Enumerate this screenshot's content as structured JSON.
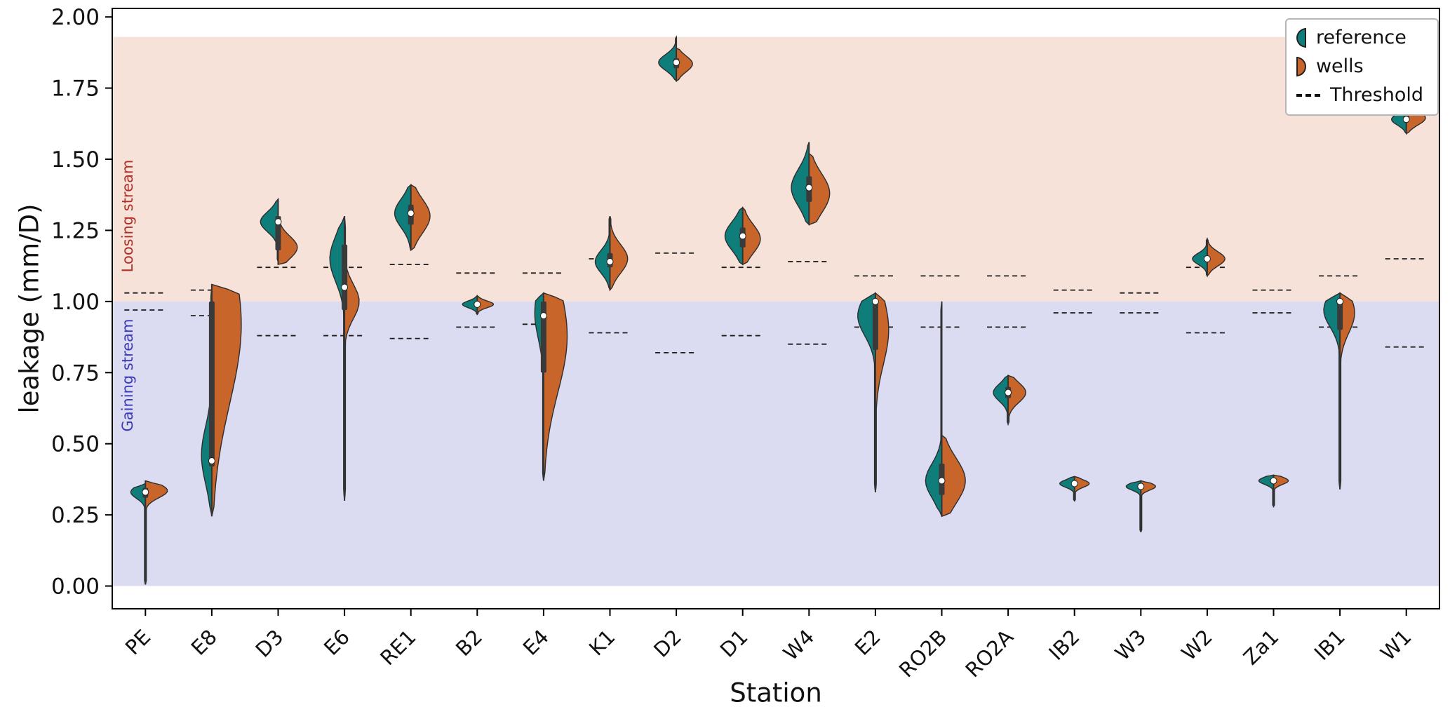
{
  "axes": {
    "ylabel": "leakage (mm/D)",
    "xlabel": "Station",
    "y_ticks": [
      "0.00",
      "0.25",
      "0.50",
      "0.75",
      "1.00",
      "1.25",
      "1.50",
      "1.75",
      "2.00"
    ],
    "y_tick_values": [
      0,
      0.25,
      0.5,
      0.75,
      1.0,
      1.25,
      1.5,
      1.75,
      2.0
    ],
    "ylim_drawn": [
      -0.08,
      2.03
    ]
  },
  "regions": [
    {
      "label": "Loosing stream",
      "text_color": "#b03028",
      "band_color": "#f7e2da",
      "from": 1.0,
      "to": 1.93
    },
    {
      "label": "Gaining stream",
      "text_color": "#3a3ab8",
      "band_color": "#dbdbf1",
      "from": 0.0,
      "to": 1.0
    }
  ],
  "legend": {
    "items": [
      {
        "label": "reference",
        "color": "#0f7d7a",
        "icon": "half-circle-left"
      },
      {
        "label": "wells",
        "color": "#c8652a",
        "icon": "half-circle-right"
      },
      {
        "label": "Threshold",
        "icon": "dashed-line"
      }
    ]
  },
  "chart_data": {
    "type": "violin",
    "variant": "split-violin",
    "title": "",
    "xlabel": "Station",
    "ylabel": "leakage (mm/D)",
    "ylim": [
      0,
      2.0
    ],
    "grid": false,
    "legend_position": "upper right",
    "series": [
      {
        "name": "reference",
        "color": "#0f7d7a",
        "side": "left"
      },
      {
        "name": "wells",
        "color": "#c8652a",
        "side": "right"
      }
    ],
    "stations": [
      {
        "name": "PE",
        "median": 0.33,
        "q1": 0.31,
        "q3": 0.345,
        "thresholds": [
          1.03,
          0.97
        ],
        "reference": {
          "peak": 0.33,
          "sigma": 0.022,
          "min": 0.005,
          "max": 0.36,
          "w": 0.5
        },
        "wells": {
          "peak": 0.335,
          "sigma": 0.025,
          "min": 0.005,
          "max": 0.37,
          "w": 0.75
        }
      },
      {
        "name": "E8",
        "median": 0.44,
        "q1": 0.42,
        "q3": 1.0,
        "thresholds": [
          1.04,
          0.95
        ],
        "reference": {
          "peak": 0.46,
          "sigma": 0.1,
          "min": 0.245,
          "max": 1.05,
          "w": 0.35
        },
        "wells": {
          "peak": 0.92,
          "sigma": 0.28,
          "min": 0.245,
          "max": 1.06,
          "w": 1.0
        }
      },
      {
        "name": "D3",
        "median": 1.28,
        "q1": 1.18,
        "q3": 1.3,
        "thresholds": [
          1.12,
          0.88
        ],
        "reference": {
          "peak": 1.28,
          "sigma": 0.035,
          "min": 1.14,
          "max": 1.36,
          "w": 0.6
        },
        "wells": {
          "peak": 1.19,
          "sigma": 0.04,
          "min": 1.13,
          "max": 1.3,
          "w": 0.65
        }
      },
      {
        "name": "E6",
        "median": 1.05,
        "q1": 0.97,
        "q3": 1.2,
        "thresholds": [
          1.12,
          0.88
        ],
        "reference": {
          "peak": 1.15,
          "sigma": 0.08,
          "min": 0.3,
          "max": 1.3,
          "w": 0.5
        },
        "wells": {
          "peak": 1.0,
          "sigma": 0.06,
          "min": 0.3,
          "max": 1.3,
          "w": 0.5
        }
      },
      {
        "name": "RE1",
        "median": 1.31,
        "q1": 1.27,
        "q3": 1.34,
        "thresholds": [
          1.13,
          0.87
        ],
        "reference": {
          "peak": 1.31,
          "sigma": 0.05,
          "min": 1.18,
          "max": 1.41,
          "w": 0.55
        },
        "wells": {
          "peak": 1.3,
          "sigma": 0.06,
          "min": 1.18,
          "max": 1.41,
          "w": 0.65
        }
      },
      {
        "name": "B2",
        "median": 0.99,
        "q1": 0.985,
        "q3": 1.0,
        "thresholds": [
          1.1,
          0.91
        ],
        "reference": {
          "peak": 0.99,
          "sigma": 0.012,
          "min": 0.955,
          "max": 1.02,
          "w": 0.5
        },
        "wells": {
          "peak": 0.99,
          "sigma": 0.012,
          "min": 0.955,
          "max": 1.02,
          "w": 0.55
        }
      },
      {
        "name": "E4",
        "median": 0.95,
        "q1": 0.75,
        "q3": 1.0,
        "thresholds": [
          1.1,
          0.92
        ],
        "reference": {
          "peak": 0.96,
          "sigma": 0.09,
          "min": 0.37,
          "max": 1.03,
          "w": 0.3
        },
        "wells": {
          "peak": 0.88,
          "sigma": 0.2,
          "min": 0.37,
          "max": 1.03,
          "w": 0.8
        }
      },
      {
        "name": "K1",
        "median": 1.14,
        "q1": 1.12,
        "q3": 1.17,
        "thresholds": [
          1.15,
          0.89
        ],
        "reference": {
          "peak": 1.14,
          "sigma": 0.04,
          "min": 1.04,
          "max": 1.3,
          "w": 0.5
        },
        "wells": {
          "peak": 1.15,
          "sigma": 0.05,
          "min": 1.04,
          "max": 1.3,
          "w": 0.6
        }
      },
      {
        "name": "D2",
        "median": 1.84,
        "q1": 1.82,
        "q3": 1.855,
        "thresholds": [
          1.17,
          0.82
        ],
        "reference": {
          "peak": 1.84,
          "sigma": 0.028,
          "min": 1.775,
          "max": 1.93,
          "w": 0.6
        },
        "wells": {
          "peak": 1.835,
          "sigma": 0.028,
          "min": 1.775,
          "max": 1.89,
          "w": 0.55
        }
      },
      {
        "name": "D1",
        "median": 1.23,
        "q1": 1.19,
        "q3": 1.26,
        "thresholds": [
          1.12,
          0.88
        ],
        "reference": {
          "peak": 1.23,
          "sigma": 0.05,
          "min": 1.13,
          "max": 1.33,
          "w": 0.6
        },
        "wells": {
          "peak": 1.22,
          "sigma": 0.05,
          "min": 1.13,
          "max": 1.33,
          "w": 0.6
        }
      },
      {
        "name": "W4",
        "median": 1.4,
        "q1": 1.35,
        "q3": 1.44,
        "thresholds": [
          1.14,
          0.85
        ],
        "reference": {
          "peak": 1.4,
          "sigma": 0.065,
          "min": 1.27,
          "max": 1.56,
          "w": 0.6
        },
        "wells": {
          "peak": 1.38,
          "sigma": 0.07,
          "min": 1.27,
          "max": 1.52,
          "w": 0.7
        }
      },
      {
        "name": "E2",
        "median": 1.0,
        "q1": 0.83,
        "q3": 1.0,
        "thresholds": [
          1.09,
          0.91
        ],
        "reference": {
          "peak": 0.95,
          "sigma": 0.07,
          "min": 0.33,
          "max": 1.03,
          "w": 0.6
        },
        "wells": {
          "peak": 0.9,
          "sigma": 0.12,
          "min": 0.33,
          "max": 1.03,
          "w": 0.45
        }
      },
      {
        "name": "RO2B",
        "median": 0.37,
        "q1": 0.32,
        "q3": 0.43,
        "thresholds": [
          1.09,
          0.91
        ],
        "reference": {
          "peak": 0.37,
          "sigma": 0.06,
          "min": 0.245,
          "max": 1.0,
          "w": 0.55
        },
        "wells": {
          "peak": 0.37,
          "sigma": 0.08,
          "min": 0.245,
          "max": 0.53,
          "w": 0.8
        }
      },
      {
        "name": "RO2A",
        "median": 0.68,
        "q1": 0.66,
        "q3": 0.7,
        "thresholds": [
          1.09,
          0.91
        ],
        "reference": {
          "peak": 0.68,
          "sigma": 0.03,
          "min": 0.57,
          "max": 0.74,
          "w": 0.5
        },
        "wells": {
          "peak": 0.68,
          "sigma": 0.035,
          "min": 0.57,
          "max": 0.74,
          "w": 0.6
        }
      },
      {
        "name": "IB2",
        "median": 0.36,
        "q1": 0.355,
        "q3": 0.37,
        "thresholds": [
          1.04,
          0.96
        ],
        "reference": {
          "peak": 0.36,
          "sigma": 0.013,
          "min": 0.3,
          "max": 0.385,
          "w": 0.5
        },
        "wells": {
          "peak": 0.36,
          "sigma": 0.013,
          "min": 0.3,
          "max": 0.385,
          "w": 0.5
        }
      },
      {
        "name": "W3",
        "median": 0.35,
        "q1": 0.345,
        "q3": 0.355,
        "thresholds": [
          1.03,
          0.96
        ],
        "reference": {
          "peak": 0.35,
          "sigma": 0.013,
          "min": 0.19,
          "max": 0.37,
          "w": 0.5
        },
        "wells": {
          "peak": 0.35,
          "sigma": 0.013,
          "min": 0.19,
          "max": 0.37,
          "w": 0.5
        }
      },
      {
        "name": "W2",
        "median": 1.15,
        "q1": 1.14,
        "q3": 1.16,
        "thresholds": [
          1.12,
          0.89
        ],
        "reference": {
          "peak": 1.15,
          "sigma": 0.02,
          "min": 1.09,
          "max": 1.22,
          "w": 0.5
        },
        "wells": {
          "peak": 1.15,
          "sigma": 0.025,
          "min": 1.09,
          "max": 1.22,
          "w": 0.6
        }
      },
      {
        "name": "Za1",
        "median": 0.37,
        "q1": 0.36,
        "q3": 0.375,
        "thresholds": [
          1.04,
          0.96
        ],
        "reference": {
          "peak": 0.37,
          "sigma": 0.013,
          "min": 0.28,
          "max": 0.39,
          "w": 0.5
        },
        "wells": {
          "peak": 0.37,
          "sigma": 0.013,
          "min": 0.28,
          "max": 0.39,
          "w": 0.5
        }
      },
      {
        "name": "IB1",
        "median": 1.0,
        "q1": 0.9,
        "q3": 1.0,
        "thresholds": [
          1.09,
          0.91
        ],
        "reference": {
          "peak": 0.97,
          "sigma": 0.06,
          "min": 0.34,
          "max": 1.03,
          "w": 0.55
        },
        "wells": {
          "peak": 0.96,
          "sigma": 0.07,
          "min": 0.34,
          "max": 1.03,
          "w": 0.5
        }
      },
      {
        "name": "W1",
        "median": 1.64,
        "q1": 1.63,
        "q3": 1.655,
        "thresholds": [
          1.15,
          0.84
        ],
        "reference": {
          "peak": 1.64,
          "sigma": 0.02,
          "min": 1.59,
          "max": 1.71,
          "w": 0.5
        },
        "wells": {
          "peak": 1.645,
          "sigma": 0.025,
          "min": 1.59,
          "max": 1.71,
          "w": 0.65
        }
      }
    ]
  }
}
